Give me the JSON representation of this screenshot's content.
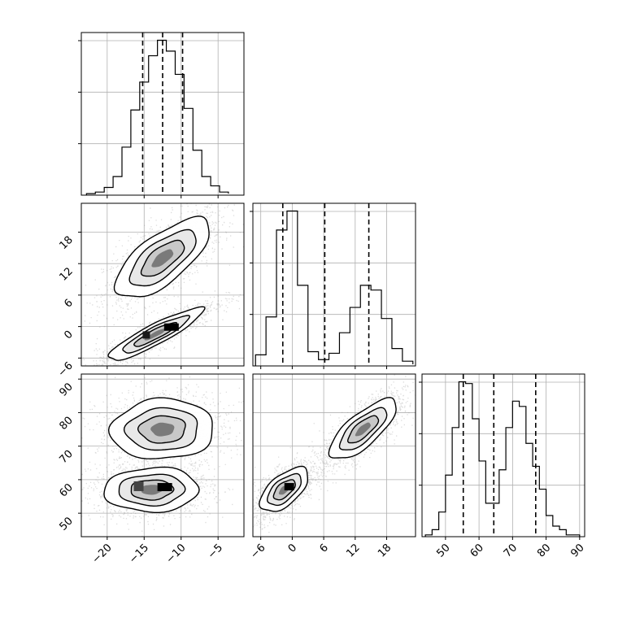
{
  "chart_data": [
    {
      "type": "histogram",
      "panel": "diag-0",
      "bins": [
        -22.8,
        -21.6,
        -20.4,
        -19.2,
        -18.0,
        -16.8,
        -15.6,
        -14.4,
        -13.2,
        -12.0,
        -10.8,
        -9.6,
        -8.4,
        -7.2,
        -6.0,
        -4.8,
        -3.6
      ],
      "counts": [
        0.01,
        0.02,
        0.05,
        0.12,
        0.31,
        0.55,
        0.73,
        0.9,
        1.0,
        0.93,
        0.78,
        0.56,
        0.29,
        0.12,
        0.06,
        0.02,
        0.01
      ],
      "quantiles": [
        -15.2,
        -12.5,
        -9.8
      ],
      "xlim": [
        -23.5,
        -1.5
      ],
      "xticks": [
        -20,
        -15,
        -10,
        -5
      ]
    },
    {
      "type": "histogram",
      "panel": "diag-1",
      "bins": [
        -7.0,
        -5.0,
        -3.0,
        -1.0,
        1.0,
        3.0,
        5.0,
        7.0,
        9.0,
        11.0,
        13.0,
        15.0,
        17.0,
        19.0,
        21.0,
        23.0
      ],
      "counts": [
        0.07,
        0.31,
        0.86,
        0.98,
        0.51,
        0.09,
        0.04,
        0.08,
        0.21,
        0.37,
        0.51,
        0.48,
        0.3,
        0.11,
        0.03,
        0.01
      ],
      "quantiles": [
        -1.8,
        6.2,
        14.6
      ],
      "xlim": [
        -7.5,
        23.5
      ],
      "xticks": [
        -6,
        0,
        6,
        12,
        18
      ]
    },
    {
      "type": "histogram",
      "panel": "diag-2",
      "bins": [
        44,
        46,
        48,
        50,
        52,
        54,
        56,
        58,
        60,
        62,
        64,
        66,
        68,
        70,
        72,
        74,
        76,
        78,
        80,
        82,
        84,
        86,
        88,
        90
      ],
      "counts": [
        0.01,
        0.04,
        0.14,
        0.35,
        0.62,
        0.88,
        0.87,
        0.67,
        0.43,
        0.19,
        0.19,
        0.38,
        0.62,
        0.77,
        0.74,
        0.53,
        0.4,
        0.27,
        0.12,
        0.06,
        0.04,
        0.01,
        0.01
      ],
      "quantiles": [
        55.3,
        64.4,
        76.9
      ],
      "xlim": [
        43,
        91.5
      ],
      "xticks": [
        50,
        60,
        70,
        80,
        90
      ]
    },
    {
      "type": "scatter-density",
      "panel": "p10",
      "x_param": 0,
      "y_param": 1,
      "xlim": [
        -23.5,
        -1.5
      ],
      "ylim": [
        -7.5,
        23.5
      ],
      "yticks": [
        -6,
        0,
        6,
        12,
        18
      ],
      "modes": [
        {
          "x": -12.5,
          "y": 13,
          "sx": 3.2,
          "sy": 3.8,
          "rho": 0.7
        },
        {
          "x": -13.5,
          "y": -1.5,
          "sx": 3.2,
          "sy": 2.5,
          "rho": 0.9
        }
      ]
    },
    {
      "type": "scatter-density",
      "panel": "p20",
      "x_param": 0,
      "y_param": 2,
      "xlim": [
        -23.5,
        -1.5
      ],
      "ylim": [
        43,
        91.5
      ],
      "yticks": [
        50,
        60,
        70,
        80,
        90
      ],
      "modes": [
        {
          "x": -12.5,
          "y": 75,
          "sx": 3.5,
          "sy": 4.5,
          "rho": 0.05
        },
        {
          "x": -14,
          "y": 57,
          "sx": 3.2,
          "sy": 3.3,
          "rho": 0.05
        }
      ]
    },
    {
      "type": "scatter-density",
      "panel": "p21",
      "x_param": 1,
      "y_param": 2,
      "xlim": [
        -7.5,
        23.5
      ],
      "ylim": [
        43,
        91.5
      ],
      "modes": [
        {
          "x": 13.5,
          "y": 75,
          "sx": 3.2,
          "sy": 4.5,
          "rho": 0.75
        },
        {
          "x": -1.5,
          "y": 57,
          "sx": 2.3,
          "sy": 3.3,
          "rho": 0.6
        }
      ]
    }
  ]
}
